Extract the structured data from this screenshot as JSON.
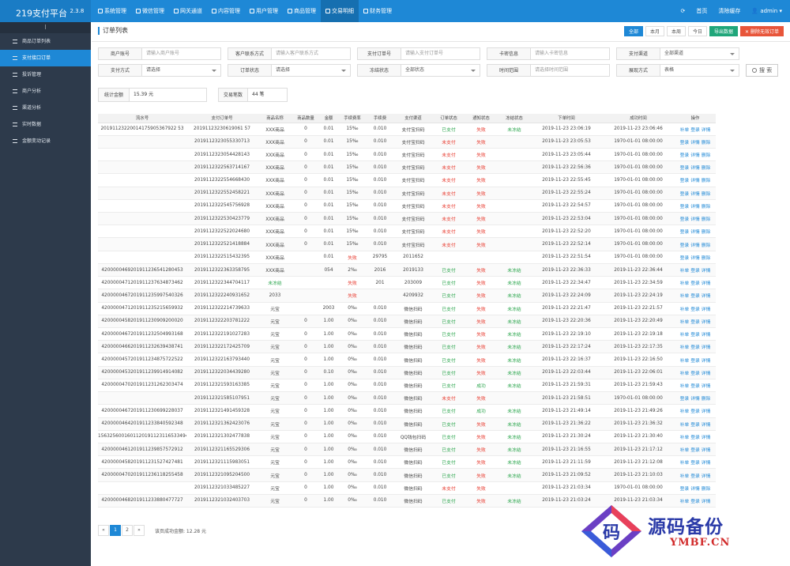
{
  "app": {
    "title": "219支付平台",
    "version": "2.3.8"
  },
  "topnav": [
    {
      "label": "系统管理",
      "icon": "gear-icon"
    },
    {
      "label": "微信管理",
      "icon": "wechat-icon"
    },
    {
      "label": "网关通道",
      "icon": "globe-icon"
    },
    {
      "label": "内容管理",
      "icon": "file-icon"
    },
    {
      "label": "用户管理",
      "icon": "user-icon"
    },
    {
      "label": "商品管理",
      "icon": "box-icon"
    },
    {
      "label": "交易明细",
      "icon": "chart-icon"
    },
    {
      "label": "财务管理",
      "icon": "money-icon"
    }
  ],
  "topright": {
    "home": "首页",
    "clear_cache": "清除缓存",
    "user": "admin"
  },
  "sidebar": {
    "collapse": "⁝",
    "items": [
      {
        "label": "商品订单列表"
      },
      {
        "label": "支付接口订单"
      },
      {
        "label": "投诉管理"
      },
      {
        "label": "商户分析"
      },
      {
        "label": "渠道分析"
      },
      {
        "label": "实时数据"
      },
      {
        "label": "金额变动记录"
      }
    ]
  },
  "page": {
    "title": "订单列表"
  },
  "headbtns": {
    "all": "全部",
    "month": "本月",
    "week": "本周",
    "today": "今日",
    "export": "导出数据",
    "delete": "删除无效订单"
  },
  "filters": {
    "merchant_no": {
      "label": "商户账号",
      "placeholder": "请输入商户账号"
    },
    "contact": {
      "label": "客户联系方式",
      "placeholder": "请输入客户联系方式"
    },
    "order_no": {
      "label": "支付订单号",
      "placeholder": "请输入支付订单号"
    },
    "card": {
      "label": "卡密信息",
      "placeholder": "请输入卡密信息"
    },
    "channel": {
      "label": "支付渠道",
      "value": "全部渠道"
    },
    "method": {
      "label": "支付方式",
      "value": "请选择"
    },
    "status": {
      "label": "订单状态",
      "value": "请选择"
    },
    "freeze": {
      "label": "冻结状态",
      "value": "全部状态"
    },
    "time": {
      "label": "时间范围",
      "placeholder": "请选择时间范围"
    },
    "display": {
      "label": "展现方式",
      "value": "表格"
    },
    "search": "搜 索"
  },
  "stats": {
    "amount_label": "统计金额",
    "amount": "15.39 元",
    "count_label": "交易笔数",
    "count": "44 笔"
  },
  "table": {
    "headers": [
      "流水号",
      "支付订单号",
      "商品名称",
      "商品数量",
      "金额",
      "手续费率",
      "手续费",
      "支付渠道",
      "订单状态",
      "通知状态",
      "冻结状态",
      "下单时间",
      "成功时间",
      "操作"
    ],
    "rows": [
      [
        "20191123220014175905367922 53",
        "20191123230619061 57",
        "XXX商品",
        "0",
        "0.01",
        "15‰",
        "0.010",
        "支付宝扫码",
        "已支付",
        "失败",
        "未冻结",
        "2019-11-23 23:06:19",
        "2019-11-23 23:06:46",
        "补单 登录 详情"
      ],
      [
        "",
        "2019112323055330713",
        "XXX商品",
        "0",
        "0.01",
        "15‰",
        "0.010",
        "支付宝扫码",
        "未支付",
        "失败",
        "",
        "2019-11-23 23:05:53",
        "1970-01-01 08:00:00",
        "登录 详情 删除"
      ],
      [
        "",
        "2019112323054428143",
        "XXX商品",
        "0",
        "0.01",
        "15‰",
        "0.010",
        "支付宝扫码",
        "未支付",
        "失败",
        "",
        "2019-11-23 23:05:44",
        "1970-01-01 08:00:00",
        "登录 详情 删除"
      ],
      [
        "",
        "2019112322563714167",
        "XXX商品",
        "0",
        "0.01",
        "15‰",
        "0.010",
        "支付宝扫码",
        "未支付",
        "失败",
        "",
        "2019-11-23 22:56:36",
        "1970-01-01 08:00:00",
        "登录 详情 删除"
      ],
      [
        "",
        "2019112322554668430",
        "XXX商品",
        "0",
        "0.01",
        "15‰",
        "0.010",
        "支付宝扫码",
        "未支付",
        "失败",
        "",
        "2019-11-23 22:55:45",
        "1970-01-01 08:00:00",
        "登录 详情 删除"
      ],
      [
        "",
        "2019112322552458221",
        "XXX商品",
        "0",
        "0.01",
        "15‰",
        "0.010",
        "支付宝扫码",
        "未支付",
        "失败",
        "",
        "2019-11-23 22:55:24",
        "1970-01-01 08:00:00",
        "登录 详情 删除"
      ],
      [
        "",
        "2019112322545756928",
        "XXX商品",
        "0",
        "0.01",
        "15‰",
        "0.010",
        "支付宝扫码",
        "未支付",
        "失败",
        "",
        "2019-11-23 22:54:57",
        "1970-01-01 08:00:00",
        "登录 详情 删除"
      ],
      [
        "",
        "2019112322530423779",
        "XXX商品",
        "0",
        "0.01",
        "15‰",
        "0.010",
        "支付宝扫码",
        "未支付",
        "失败",
        "",
        "2019-11-23 22:53:04",
        "1970-01-01 08:00:00",
        "登录 详情 删除"
      ],
      [
        "",
        "2019112322522024680",
        "XXX商品",
        "0",
        "0.01",
        "15‰",
        "0.010",
        "支付宝扫码",
        "未支付",
        "失败",
        "",
        "2019-11-23 22:52:20",
        "1970-01-01 08:00:00",
        "登录 详情 删除"
      ],
      [
        "",
        "2019112322521418884",
        "XXX商品",
        "0",
        "0.01",
        "15‰",
        "0.010",
        "支付宝扫码",
        "未支付",
        "失败",
        "",
        "2019-11-23 22:52:14",
        "1970-01-01 08:00:00",
        "登录 详情 删除"
      ],
      [
        "",
        "2019112322515432395",
        "XXX商品",
        "",
        "0.01",
        "失败",
        "29795",
        "2011652",
        "",
        "",
        "",
        "2019-11-23 22:51:54",
        "1970-01-01 08:00:00",
        "登录 详情 删除"
      ],
      [
        "4200000469201911236541280453",
        "2019112322363358795",
        "XXX商品",
        "",
        "054",
        "2‰",
        "2016",
        "2019133",
        "已支付",
        "失败",
        "未冻结",
        "2019-11-23 22:36:33",
        "2019-11-23 22:36:44",
        "补单 登录 详情"
      ],
      [
        "4200000471201911237634873462",
        "2019112322344704117",
        "未冻结",
        "",
        "",
        "失败",
        "201",
        "203009",
        "已支付",
        "失败",
        "未冻结",
        "2019-11-23 22:34:47",
        "2019-11-23 22:34:59",
        "补单 登录 详情"
      ],
      [
        "4200000467201911235997540326",
        "2019112322240931652",
        "2033",
        "",
        "",
        "失败",
        "",
        "4209932",
        "已支付",
        "失败",
        "未冻结",
        "2019-11-23 22:24:09",
        "2019-11-23 22:24:19",
        "补单 登录 详情"
      ],
      [
        "4200000471201911235215659932",
        "2019112322214739633",
        "元宝",
        "",
        "2003",
        "0‰",
        "0.010",
        "微信扫码",
        "已支付",
        "失败",
        "未冻结",
        "2019-11-23 22:21:47",
        "2019-11-23 22:21:57",
        "补单 登录 详情"
      ],
      [
        "4200000458201911230909200020",
        "2019112322203781222",
        "元宝",
        "0",
        "1.00",
        "0‰",
        "0.010",
        "微信扫码",
        "已支付",
        "失败",
        "未冻结",
        "2019-11-23 22:20:36",
        "2019-11-23 22:20:49",
        "补单 登录 详情"
      ],
      [
        "4200000467201911232504993168",
        "2019112322191027283",
        "元宝",
        "0",
        "1.00",
        "0‰",
        "0.010",
        "微信扫码",
        "已支付",
        "失败",
        "未冻结",
        "2019-11-23 22:19:10",
        "2019-11-23 22:19:18",
        "补单 登录 详情"
      ],
      [
        "4200000466201911232639438741",
        "2019112322172425709",
        "元宝",
        "0",
        "1.00",
        "0‰",
        "0.010",
        "微信扫码",
        "已支付",
        "失败",
        "未冻结",
        "2019-11-23 22:17:24",
        "2019-11-23 22:17:35",
        "补单 登录 详情"
      ],
      [
        "4200000457201911234875722522",
        "2019112322163793440",
        "元宝",
        "0",
        "1.00",
        "0‰",
        "0.010",
        "微信扫码",
        "已支付",
        "失败",
        "未冻结",
        "2019-11-23 22:16:37",
        "2019-11-23 22:16:50",
        "补单 登录 详情"
      ],
      [
        "4200000453201911239914914082",
        "2019112322034439280",
        "元宝",
        "0",
        "0.10",
        "0‰",
        "0.010",
        "微信扫码",
        "已支付",
        "失败",
        "未冻结",
        "2019-11-23 22:03:44",
        "2019-11-23 22:06:01",
        "补单 登录 详情"
      ],
      [
        "4200000470201911231262303474",
        "2019112321593163385",
        "元宝",
        "0",
        "1.00",
        "0‰",
        "0.010",
        "微信扫码",
        "已支付",
        "成功",
        "未冻结",
        "2019-11-23 21:59:31",
        "2019-11-23 21:59:43",
        "补单 登录 详情"
      ],
      [
        "",
        "2019112321585107951",
        "元宝",
        "0",
        "1.00",
        "0‰",
        "0.010",
        "微信扫码",
        "未支付",
        "失败",
        "",
        "2019-11-23 21:58:51",
        "1970-01-01 08:00:00",
        "登录 详情 删除"
      ],
      [
        "4200000467201911230699228037",
        "2019112321491459328",
        "元宝",
        "0",
        "1.00",
        "0‰",
        "0.010",
        "微信扫码",
        "已支付",
        "成功",
        "未冻结",
        "2019-11-23 21:49:14",
        "2019-11-23 21:49:26",
        "补单 登录 详情"
      ],
      [
        "4200000464201911233840592348",
        "2019112321362423076",
        "元宝",
        "0",
        "1.00",
        "0‰",
        "0.010",
        "微信扫码",
        "已支付",
        "失败",
        "未冻结",
        "2019-11-23 21:36:22",
        "2019-11-23 21:36:32",
        "补单 登录 详情"
      ],
      [
        "15632560016011201911231165334945",
        "2019112321302477838",
        "元宝",
        "0",
        "1.00",
        "0‰",
        "0.010",
        "QQ钱包扫码",
        "已支付",
        "失败",
        "未冻结",
        "2019-11-23 21:30:24",
        "2019-11-23 21:30:40",
        "补单 登录 详情"
      ],
      [
        "4200000461201911239857572912",
        "2019112321165529306",
        "元宝",
        "0",
        "1.00",
        "0‰",
        "0.010",
        "微信扫码",
        "已支付",
        "失败",
        "未冻结",
        "2019-11-23 21:16:55",
        "2019-11-23 21:17:12",
        "补单 登录 详情"
      ],
      [
        "4200000458201911231527427481",
        "2019112321115983051",
        "元宝",
        "0",
        "1.00",
        "0‰",
        "0.010",
        "微信扫码",
        "已支付",
        "失败",
        "未冻结",
        "2019-11-23 21:11:59",
        "2019-11-23 21:12:08",
        "补单 登录 详情"
      ],
      [
        "4200000470201911236118255458",
        "2019112321095204500",
        "元宝",
        "0",
        "1.00",
        "0‰",
        "0.010",
        "微信扫码",
        "已支付",
        "失败",
        "未冻结",
        "2019-11-23 21:09:52",
        "2019-11-23 21:10:03",
        "补单 登录 详情"
      ],
      [
        "",
        "2019112321033485227",
        "元宝",
        "0",
        "1.00",
        "0‰",
        "0.010",
        "微信扫码",
        "未支付",
        "失败",
        "",
        "2019-11-23 21:03:34",
        "1970-01-01 08:00:00",
        "登录 详情 删除"
      ],
      [
        "4200000468201911233880477727",
        "2019112321032403703",
        "元宝",
        "0",
        "1.00",
        "0‰",
        "0.010",
        "微信扫码",
        "已支付",
        "失败",
        "未冻结",
        "2019-11-23 21:03:24",
        "2019-11-23 21:03:34",
        "补单 登录 详情"
      ]
    ]
  },
  "pager": {
    "prev": "«",
    "pages": [
      "1",
      "2"
    ],
    "next": "»",
    "info": "该页成功金额: 12.28 元"
  },
  "watermark": {
    "logo_char": "码",
    "text": "源码备份",
    "sub": "YMBF.CN"
  },
  "colors": {
    "accent": "#1e88d6",
    "sidebar": "#2d3a4b",
    "success": "#2aa54c",
    "danger": "#e83a2e"
  }
}
